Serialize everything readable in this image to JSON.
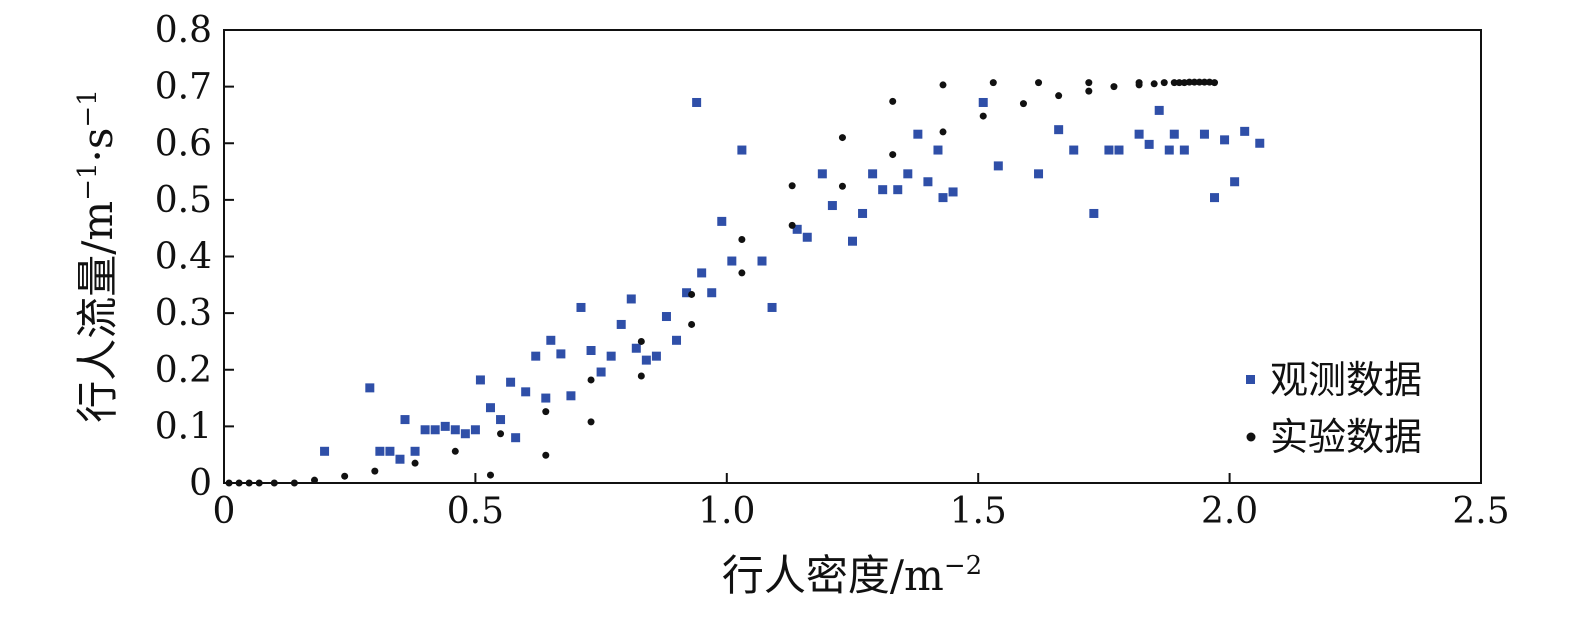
{
  "chart_data": {
    "type": "scatter",
    "title": "",
    "xlabel": "行人密度/m",
    "xlabel_sup": "−2",
    "ylabel": "行人流量/m",
    "ylabel_sup1": "−1",
    "ylabel_mid": "·s",
    "ylabel_sup2": "−1",
    "xlim": [
      0,
      2.5
    ],
    "ylim": [
      0,
      0.8
    ],
    "xticks": [
      0,
      0.5,
      1.0,
      1.5,
      2.0,
      2.5
    ],
    "xtick_labels": [
      "0",
      "0.5",
      "1.0",
      "1.5",
      "2.0",
      "2.5"
    ],
    "yticks": [
      0,
      0.1,
      0.2,
      0.3,
      0.4,
      0.5,
      0.6,
      0.7,
      0.8
    ],
    "ytick_labels": [
      "0",
      "0.1",
      "0.2",
      "0.3",
      "0.4",
      "0.5",
      "0.6",
      "0.7",
      "0.8"
    ],
    "grid": false,
    "legend_position": "bottom-right",
    "series": [
      {
        "name": "观测数据",
        "marker": "square",
        "color": "#2f4fa8",
        "points": [
          [
            0.2,
            0.056
          ],
          [
            0.29,
            0.168
          ],
          [
            0.31,
            0.056
          ],
          [
            0.33,
            0.056
          ],
          [
            0.35,
            0.042
          ],
          [
            0.36,
            0.112
          ],
          [
            0.38,
            0.056
          ],
          [
            0.4,
            0.094
          ],
          [
            0.42,
            0.094
          ],
          [
            0.44,
            0.1
          ],
          [
            0.46,
            0.094
          ],
          [
            0.48,
            0.087
          ],
          [
            0.5,
            0.094
          ],
          [
            0.51,
            0.182
          ],
          [
            0.53,
            0.133
          ],
          [
            0.55,
            0.112
          ],
          [
            0.57,
            0.178
          ],
          [
            0.58,
            0.08
          ],
          [
            0.6,
            0.161
          ],
          [
            0.62,
            0.224
          ],
          [
            0.64,
            0.15
          ],
          [
            0.65,
            0.252
          ],
          [
            0.67,
            0.228
          ],
          [
            0.69,
            0.154
          ],
          [
            0.71,
            0.31
          ],
          [
            0.73,
            0.234
          ],
          [
            0.75,
            0.196
          ],
          [
            0.77,
            0.224
          ],
          [
            0.79,
            0.28
          ],
          [
            0.81,
            0.325
          ],
          [
            0.82,
            0.238
          ],
          [
            0.84,
            0.217
          ],
          [
            0.86,
            0.224
          ],
          [
            0.88,
            0.294
          ],
          [
            0.9,
            0.252
          ],
          [
            0.92,
            0.336
          ],
          [
            0.94,
            0.672
          ],
          [
            0.95,
            0.371
          ],
          [
            0.97,
            0.336
          ],
          [
            0.99,
            0.462
          ],
          [
            1.01,
            0.392
          ],
          [
            1.03,
            0.588
          ],
          [
            1.07,
            0.392
          ],
          [
            1.09,
            0.31
          ],
          [
            1.14,
            0.448
          ],
          [
            1.16,
            0.434
          ],
          [
            1.19,
            0.546
          ],
          [
            1.21,
            0.49
          ],
          [
            1.25,
            0.427
          ],
          [
            1.27,
            0.476
          ],
          [
            1.29,
            0.546
          ],
          [
            1.31,
            0.518
          ],
          [
            1.34,
            0.518
          ],
          [
            1.36,
            0.546
          ],
          [
            1.38,
            0.616
          ],
          [
            1.4,
            0.532
          ],
          [
            1.42,
            0.588
          ],
          [
            1.43,
            0.504
          ],
          [
            1.45,
            0.514
          ],
          [
            1.51,
            0.672
          ],
          [
            1.54,
            0.56
          ],
          [
            1.62,
            0.546
          ],
          [
            1.66,
            0.624
          ],
          [
            1.69,
            0.588
          ],
          [
            1.73,
            0.476
          ],
          [
            1.76,
            0.588
          ],
          [
            1.78,
            0.588
          ],
          [
            1.82,
            0.616
          ],
          [
            1.84,
            0.598
          ],
          [
            1.86,
            0.658
          ],
          [
            1.88,
            0.588
          ],
          [
            1.89,
            0.616
          ],
          [
            1.91,
            0.588
          ],
          [
            1.95,
            0.616
          ],
          [
            1.97,
            0.504
          ],
          [
            1.99,
            0.606
          ],
          [
            2.01,
            0.532
          ],
          [
            2.03,
            0.621
          ],
          [
            2.06,
            0.6
          ]
        ]
      },
      {
        "name": "实验数据",
        "marker": "circle",
        "color": "#111111",
        "points": [
          [
            0.01,
            0.0
          ],
          [
            0.03,
            0.0
          ],
          [
            0.05,
            0.0
          ],
          [
            0.07,
            0.0
          ],
          [
            0.1,
            0.0
          ],
          [
            0.14,
            0.0
          ],
          [
            0.18,
            0.005
          ],
          [
            0.24,
            0.012
          ],
          [
            0.3,
            0.021
          ],
          [
            0.38,
            0.035
          ],
          [
            0.46,
            0.056
          ],
          [
            0.53,
            0.014
          ],
          [
            0.55,
            0.087
          ],
          [
            0.64,
            0.049
          ],
          [
            0.64,
            0.126
          ],
          [
            0.73,
            0.108
          ],
          [
            0.73,
            0.182
          ],
          [
            0.83,
            0.189
          ],
          [
            0.83,
            0.25
          ],
          [
            0.93,
            0.28
          ],
          [
            0.93,
            0.333
          ],
          [
            1.03,
            0.371
          ],
          [
            1.03,
            0.43
          ],
          [
            1.13,
            0.455
          ],
          [
            1.13,
            0.525
          ],
          [
            1.23,
            0.524
          ],
          [
            1.23,
            0.61
          ],
          [
            1.33,
            0.58
          ],
          [
            1.33,
            0.674
          ],
          [
            1.43,
            0.62
          ],
          [
            1.43,
            0.703
          ],
          [
            1.51,
            0.648
          ],
          [
            1.53,
            0.707
          ],
          [
            1.59,
            0.67
          ],
          [
            1.62,
            0.707
          ],
          [
            1.66,
            0.684
          ],
          [
            1.72,
            0.692
          ],
          [
            1.72,
            0.707
          ],
          [
            1.77,
            0.7
          ],
          [
            1.82,
            0.703
          ],
          [
            1.82,
            0.707
          ],
          [
            1.85,
            0.705
          ],
          [
            1.87,
            0.707
          ],
          [
            1.89,
            0.707
          ],
          [
            1.9,
            0.707
          ],
          [
            1.91,
            0.707
          ],
          [
            1.92,
            0.708
          ],
          [
            1.93,
            0.708
          ],
          [
            1.94,
            0.708
          ],
          [
            1.95,
            0.708
          ],
          [
            1.96,
            0.708
          ],
          [
            1.97,
            0.707
          ]
        ]
      }
    ]
  }
}
